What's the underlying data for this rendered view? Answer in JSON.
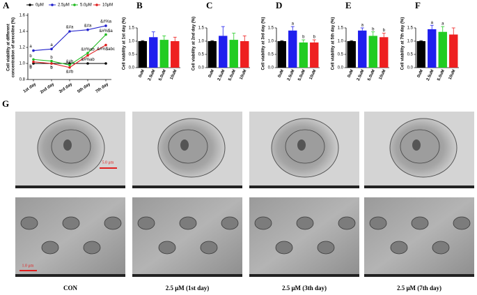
{
  "chart_data": [
    {
      "type": "line",
      "panel": "A",
      "ylabel": [
        "Cell viability at different",
        "concentration of arecoline (%)"
      ],
      "categories": [
        "1st day",
        "2nd day",
        "3rd day",
        "5th day",
        "7th day"
      ],
      "ylim": [
        0.8,
        1.6
      ],
      "yticks": [
        {
          "value": 0.8,
          "label": "0.8"
        },
        {
          "value": 1.0,
          "label": "1.0"
        },
        1.2,
        1.4,
        1.6
      ],
      "series": [
        {
          "name": "0μM",
          "color": "#000000",
          "values": [
            1.0,
            1.0,
            1.0,
            1.0,
            1.0
          ],
          "point_labels": [
            "b",
            "b",
            null,
            null,
            null
          ]
        },
        {
          "name": "2.5μM",
          "color": "#2222cc",
          "values": [
            1.16,
            1.18,
            1.4,
            1.42,
            1.47
          ],
          "point_labels": [
            "a",
            "a",
            "&#a",
            "&#a",
            "&#%a"
          ]
        },
        {
          "name": "5.0μM",
          "color": "#22bb22",
          "values": [
            1.05,
            1.03,
            0.98,
            1.13,
            1.36
          ],
          "point_labels": [
            "b",
            "b",
            "&#b",
            "&#%ab",
            "&#%$a"
          ]
        },
        {
          "name": "10μM",
          "color": "#e02020",
          "values": [
            1.02,
            1.0,
            0.95,
            1.1,
            1.23
          ],
          "point_labels": [
            "b",
            "b",
            "&#b",
            "&#%ab",
            "&#%$abc"
          ]
        }
      ]
    },
    {
      "type": "bar",
      "panel": "B",
      "ylabel": "Cell viability at 1st day (%)",
      "categories": [
        "0uM",
        "2.5uM",
        "5.0uM",
        "10uM"
      ],
      "colors": [
        "#000000",
        "#1f1fee",
        "#22cc22",
        "#ee2020"
      ],
      "values": [
        1.0,
        1.15,
        1.05,
        1.0
      ],
      "errors": [
        0.02,
        0.2,
        0.15,
        0.15
      ],
      "letters": [
        null,
        null,
        null,
        null
      ],
      "ylim": [
        0,
        1.5
      ],
      "yticks": [
        {
          "value": 0,
          "label": "0.0"
        },
        0.5,
        {
          "value": 1,
          "label": "1.0"
        },
        1.5
      ]
    },
    {
      "type": "bar",
      "panel": "C",
      "ylabel": "Cell viability at 2nd day (%)",
      "categories": [
        "0uM",
        "2.5uM",
        "5.0uM",
        "10uM"
      ],
      "colors": [
        "#000000",
        "#1f1fee",
        "#22cc22",
        "#ee2020"
      ],
      "values": [
        1.0,
        1.2,
        1.05,
        1.0
      ],
      "errors": [
        0.02,
        0.35,
        0.25,
        0.2
      ],
      "letters": [
        null,
        null,
        null,
        null
      ],
      "ylim": [
        0,
        1.5
      ],
      "yticks": [
        {
          "value": 0,
          "label": "0.0"
        },
        0.5,
        {
          "value": 1,
          "label": "1.0"
        },
        1.5
      ]
    },
    {
      "type": "bar",
      "panel": "D",
      "ylabel": "Cell viability at 3rd day (%)",
      "categories": [
        "0uM",
        "2.5uM",
        "5.0uM",
        "10uM"
      ],
      "colors": [
        "#000000",
        "#1f1fee",
        "#22cc22",
        "#ee2020"
      ],
      "values": [
        1.0,
        1.4,
        0.95,
        0.95
      ],
      "errors": [
        0.02,
        0.15,
        0.1,
        0.1
      ],
      "letters": [
        null,
        "a",
        "b",
        "b"
      ],
      "ylim": [
        0,
        1.5
      ],
      "yticks": [
        {
          "value": 0,
          "label": "0.0"
        },
        0.5,
        {
          "value": 1,
          "label": "1.0"
        },
        1.5
      ]
    },
    {
      "type": "bar",
      "panel": "E",
      "ylabel": "Cell viability at 5th day (%)",
      "categories": [
        "0uM",
        "2.5uM",
        "5.0uM",
        "10uM"
      ],
      "colors": [
        "#000000",
        "#1f1fee",
        "#22cc22",
        "#ee2020"
      ],
      "values": [
        1.0,
        1.4,
        1.2,
        1.15
      ],
      "errors": [
        0.02,
        0.1,
        0.15,
        0.15
      ],
      "letters": [
        null,
        "a",
        "b",
        "b"
      ],
      "ylim": [
        0,
        1.5
      ],
      "yticks": [
        {
          "value": 0,
          "label": "0.0"
        },
        0.5,
        {
          "value": 1,
          "label": "1.0"
        },
        1.5
      ]
    },
    {
      "type": "bar",
      "panel": "F",
      "ylabel": "Cell viability at 7th day (%)",
      "categories": [
        "0uM",
        "2.5uM",
        "5.0uM",
        "10uM"
      ],
      "colors": [
        "#000000",
        "#1f1fee",
        "#22cc22",
        "#ee2020"
      ],
      "values": [
        1.0,
        1.45,
        1.35,
        1.25
      ],
      "errors": [
        0.02,
        0.15,
        0.2,
        0.25
      ],
      "letters": [
        null,
        "a",
        "a",
        null
      ],
      "ylim": [
        0,
        1.5
      ],
      "yticks": [
        {
          "value": 0,
          "label": "0.0"
        },
        0.5,
        {
          "value": 1,
          "label": "1.0"
        },
        1.5
      ]
    }
  ],
  "micrographs": {
    "panel": "G",
    "scale_bars": [
      "5.0 μm",
      "1.0 μm"
    ],
    "captions": [
      "CON",
      "2.5 μM (1st day)",
      "2.5 μM (3th day)",
      "2.5 μM (7th day)"
    ]
  }
}
